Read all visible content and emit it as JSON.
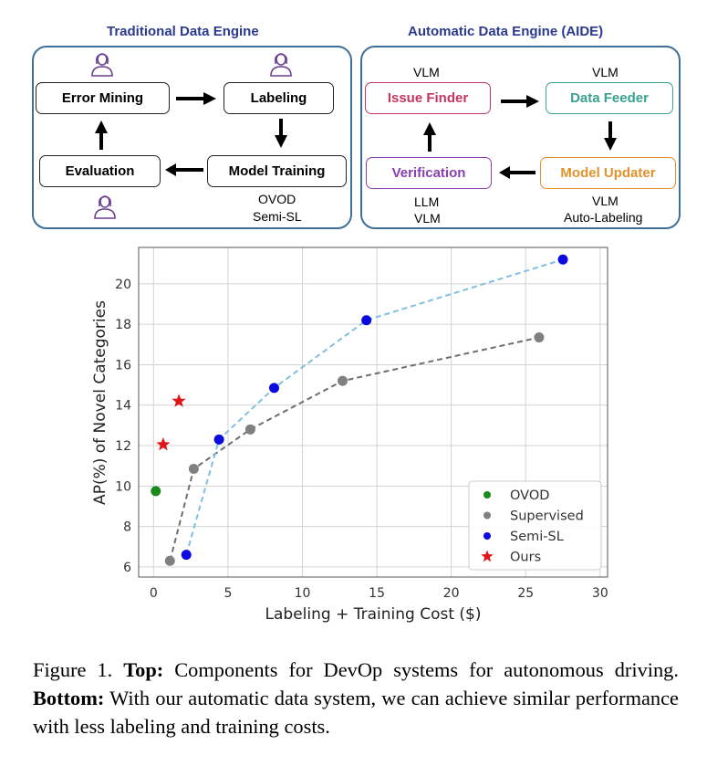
{
  "diagram": {
    "traditional": {
      "title": "Traditional Data Engine",
      "error_mining": "Error Mining",
      "labeling": "Labeling",
      "evaluation": "Evaluation",
      "model_training": "Model Training",
      "model_training_note_1": "OVOD",
      "model_training_note_2": "Semi-SL"
    },
    "automatic": {
      "title": "Automatic Data Engine (AIDE)",
      "issue_finder": "Issue Finder",
      "data_feeder": "Data Feeder",
      "verification": "Verification",
      "model_updater": "Model Updater",
      "issue_finder_note": "VLM",
      "data_feeder_note": "VLM",
      "verification_note_1": "LLM",
      "verification_note_2": "VLM",
      "model_updater_note_1": "VLM",
      "model_updater_note_2": "Auto-Labeling"
    },
    "colors": {
      "panel_border": "#3f6f96",
      "title": "#2b3a8f",
      "issue_finder": "#c2375e",
      "data_feeder": "#3aa18f",
      "verification": "#8a3fb0",
      "model_updater": "#e0932c"
    }
  },
  "chart_data": {
    "type": "scatter",
    "xlabel": "Labeling + Training Cost ($)",
    "ylabel": "AP(%) of Novel Categories",
    "xlim": [
      -1,
      30.5
    ],
    "ylim": [
      5.5,
      21.8
    ],
    "xticks": [
      0,
      5,
      10,
      15,
      20,
      25,
      30
    ],
    "yticks": [
      6,
      8,
      10,
      12,
      14,
      16,
      18,
      20
    ],
    "grid": true,
    "legend_position": "lower-right",
    "series": [
      {
        "name": "OVOD",
        "marker": "circle",
        "color": "#1a8a1a",
        "line": false,
        "points": [
          [
            0.15,
            9.75
          ]
        ]
      },
      {
        "name": "Supervised",
        "marker": "circle",
        "color": "#808080",
        "line": true,
        "line_color": "#6e6e6e",
        "points": [
          [
            1.1,
            6.3
          ],
          [
            2.7,
            10.85
          ],
          [
            6.5,
            12.8
          ],
          [
            12.7,
            15.2
          ],
          [
            25.9,
            17.35
          ]
        ]
      },
      {
        "name": "Semi-SL",
        "marker": "circle",
        "color": "#0a0ae0",
        "line": true,
        "line_color": "#7fbfdf",
        "points": [
          [
            2.2,
            6.6
          ],
          [
            4.4,
            12.3
          ],
          [
            8.1,
            14.85
          ],
          [
            14.3,
            18.2
          ],
          [
            27.5,
            21.2
          ]
        ]
      },
      {
        "name": "Ours",
        "marker": "star",
        "color": "#e01616",
        "line": false,
        "points": [
          [
            0.65,
            12.05
          ],
          [
            1.7,
            14.2
          ]
        ]
      }
    ]
  },
  "caption": {
    "label": "Figure 1.",
    "top_bold": "Top:",
    "top_text": "Components for DevOp systems for autonomous driving.",
    "bottom_bold": "Bottom:",
    "bottom_text": "With our automatic data system, we can achieve similar performance with less labeling and training costs."
  }
}
